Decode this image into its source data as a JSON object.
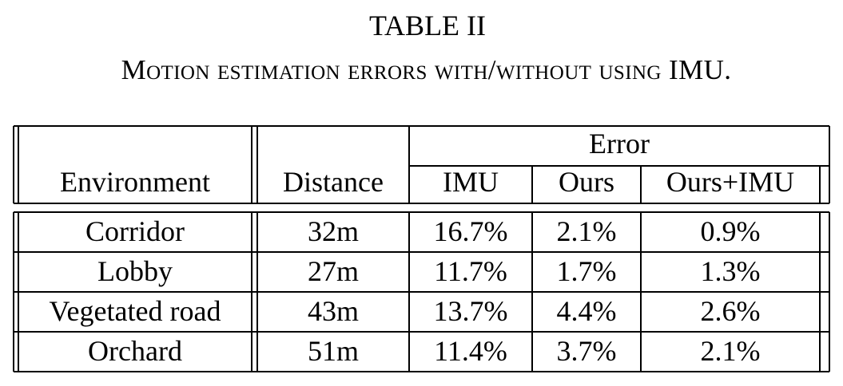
{
  "caption": {
    "number": "TABLE II",
    "title": "Motion estimation errors with/without using IMU."
  },
  "table": {
    "headers": {
      "environment": "Environment",
      "distance": "Distance",
      "error_group": "Error",
      "imu": "IMU",
      "ours": "Ours",
      "ours_imu": "Ours+IMU"
    },
    "rows": [
      {
        "environment": "Corridor",
        "distance": "32m",
        "imu": "16.7%",
        "ours": "2.1%",
        "ours_imu": "0.9%"
      },
      {
        "environment": "Lobby",
        "distance": "27m",
        "imu": "11.7%",
        "ours": "1.7%",
        "ours_imu": "1.3%"
      },
      {
        "environment": "Vegetated road",
        "distance": "43m",
        "imu": "13.7%",
        "ours": "4.4%",
        "ours_imu": "2.6%"
      },
      {
        "environment": "Orchard",
        "distance": "51m",
        "imu": "11.4%",
        "ours": "3.7%",
        "ours_imu": "2.1%"
      }
    ]
  }
}
